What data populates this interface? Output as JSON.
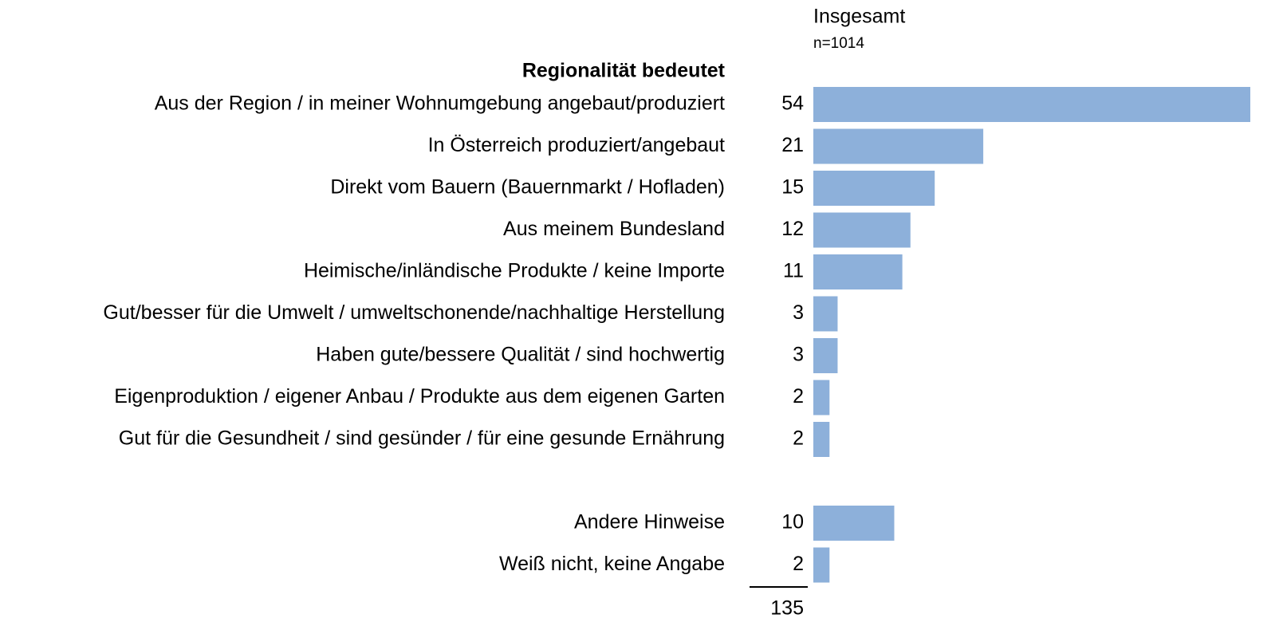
{
  "chart_data": {
    "type": "bar",
    "orientation": "horizontal",
    "column_title": "Insgesamt",
    "column_subtitle": "n=1014",
    "section_title": "Regionalität bedeutet",
    "categories": [
      "Aus der Region / in meiner Wohnumgebung angebaut/produziert",
      "In Österreich produziert/angebaut",
      "Direkt vom Bauern (Bauernmarkt / Hofladen)",
      "Aus meinem Bundesland",
      "Heimische/inländische Produkte / keine Importe",
      "Gut/besser für die Umwelt / umweltschonende/nachhaltige Herstellung",
      "Haben gute/bessere Qualität / sind hochwertig",
      "Eigenproduktion / eigener Anbau / Produkte aus dem eigenen Garten",
      "Gut für die Gesundheit / sind gesünder / für eine gesunde Ernährung",
      null,
      "Andere Hinweise",
      "Weiß nicht, keine Angabe"
    ],
    "values": [
      54,
      21,
      15,
      12,
      11,
      3,
      3,
      2,
      2,
      null,
      10,
      2
    ],
    "total": 135,
    "color": "#8db0da",
    "section_color": "#1f3f7a"
  }
}
